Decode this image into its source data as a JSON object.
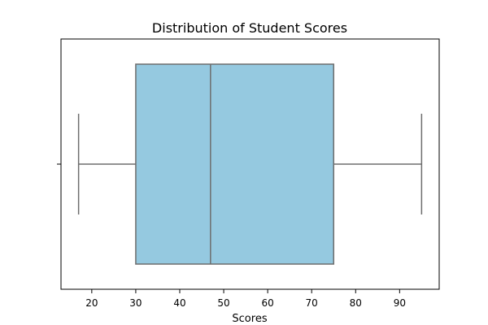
{
  "chart_data": {
    "type": "box",
    "title": "Distribution of Student Scores",
    "xlabel": "Scores",
    "ylabel": "",
    "orientation": "horizontal",
    "xlim": [
      13,
      99
    ],
    "xticks": [
      20,
      30,
      40,
      50,
      60,
      70,
      80,
      90
    ],
    "grid": false,
    "box": {
      "whisker_low": 17,
      "q1": 30,
      "median": 47,
      "q3": 75,
      "whisker_high": 95
    },
    "colors": {
      "box_fill": "#95c9e0",
      "box_line": "#6d6d6d",
      "frame": "#000000"
    }
  }
}
